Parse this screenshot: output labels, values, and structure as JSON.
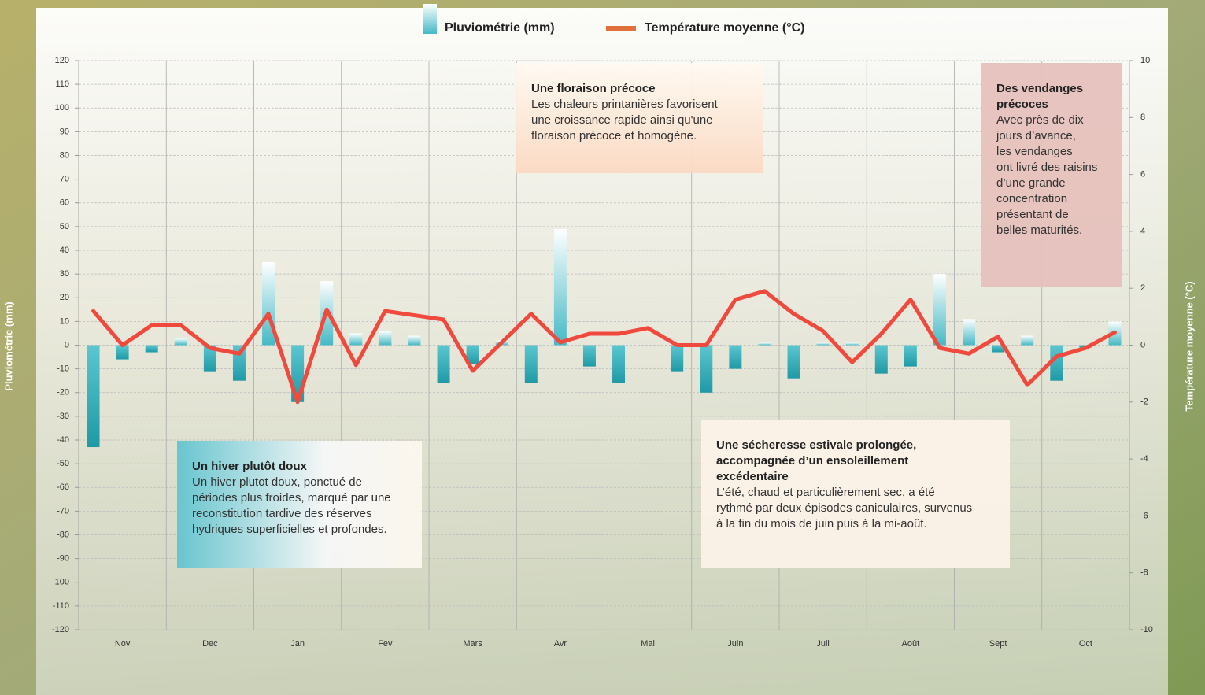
{
  "chart_data": {
    "type": "bar-line",
    "categories": [
      null,
      "Nov",
      null,
      null,
      "Dec",
      null,
      null,
      "Jan",
      null,
      null,
      "Fev",
      null,
      null,
      "Mars",
      null,
      null,
      "Avr",
      null,
      null,
      "Mai",
      null,
      null,
      "Juin",
      null,
      null,
      "Juil",
      null,
      null,
      "Août",
      null,
      null,
      "Sept",
      null,
      null,
      "Oct",
      null
    ],
    "series": [
      {
        "name": "Pluviométrie (mm)",
        "type": "bar",
        "color": "#3fb6c2",
        "values": [
          -43,
          -6,
          -3,
          3,
          -11,
          -15,
          35,
          -24,
          27,
          5,
          6,
          4,
          -16,
          -8,
          2,
          -16,
          49,
          -9,
          -16,
          0,
          -11,
          -20,
          -10,
          1,
          -14,
          1,
          1,
          -12,
          -9,
          30,
          11,
          -3,
          4,
          -15,
          -1,
          10
        ]
      },
      {
        "name": "Température moyenne (°C)",
        "type": "line",
        "axis": "y2",
        "color": "#f04a3e",
        "values": [
          1.2,
          0,
          0.7,
          0.7,
          -0.1,
          -0.3,
          1.1,
          -2,
          1.25,
          -0.7,
          1.2,
          1.05,
          0.9,
          -0.9,
          0.1,
          1.1,
          0.1,
          0.4,
          0.4,
          0.6,
          0,
          0,
          1.6,
          1.9,
          1.1,
          0.5,
          -0.6,
          0.4,
          1.6,
          -0.1,
          -0.3,
          0.3,
          -1.4,
          -0.4,
          -0.1,
          0.45
        ]
      }
    ],
    "ylabel": "Pluviométrie  (mm)",
    "y2label": "Température moyenne (°C)",
    "ylim": [
      -120,
      120
    ],
    "yticks": [
      -120,
      -110,
      -100,
      -90,
      -80,
      -70,
      -60,
      -50,
      -40,
      -30,
      -20,
      -10,
      0,
      10,
      20,
      30,
      40,
      50,
      60,
      70,
      80,
      90,
      100,
      110,
      120
    ],
    "y2lim": [
      -10,
      10
    ],
    "y2ticks": [
      -10,
      -8,
      -6,
      -4,
      -2,
      0,
      2,
      4,
      6,
      8,
      10
    ],
    "grid": true,
    "legend": "top",
    "annotations": [
      {
        "title": [
          "Une floraison précoce"
        ],
        "lines": [
          "Les chaleurs printanières favorisent",
          "une croissance rapide ainsi qu'une",
          "floraison précoce et homogène."
        ]
      },
      {
        "title": [
          "Des vendanges",
          "précoces"
        ],
        "lines": [
          "Avec près de dix",
          "jours d’avance,",
          "les vendanges",
          "ont livré des raisins",
          "d’une grande",
          "concentration",
          "présentant de",
          "belles maturités."
        ]
      },
      {
        "title": [
          "Un hiver plutôt doux"
        ],
        "lines": [
          "Un hiver plutot doux, ponctué de",
          "périodes plus froides, marqué par une",
          "reconstitution tardive des réserves",
          "hydriques superficielles et profondes."
        ]
      },
      {
        "title": [
          "Une sécheresse estivale prolongée,",
          "accompagnée d’un ensoleillement",
          "excédentaire"
        ],
        "lines": [
          "L’été, chaud et particulièrement sec, a été",
          "rythmé par deux épisodes caniculaires, survenus",
          "à la fin du mois de juin puis à la mi-août."
        ]
      }
    ]
  }
}
